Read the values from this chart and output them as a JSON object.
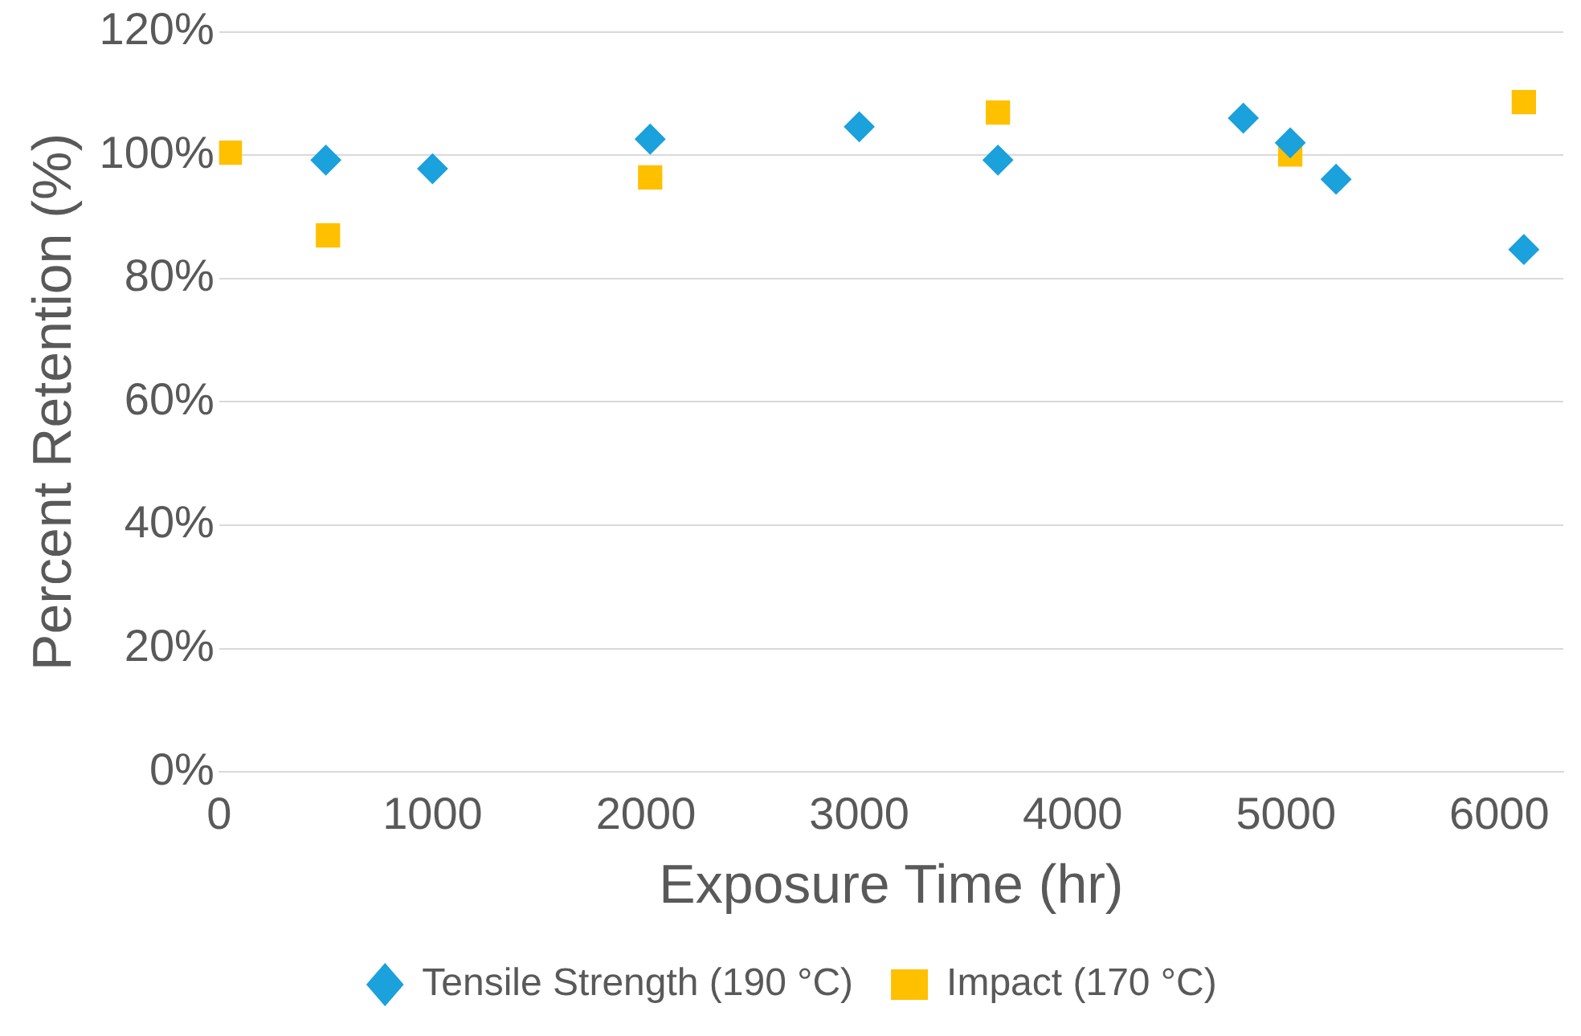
{
  "chart_data": {
    "type": "scatter",
    "xlabel": "Exposure Time (hr)",
    "ylabel": "Percent Retention (%)",
    "xlim": [
      0,
      6300
    ],
    "xticks": [
      0,
      1000,
      2000,
      3000,
      4000,
      5000,
      6000
    ],
    "ylim": [
      0,
      120
    ],
    "yticks": [
      {
        "value": 0,
        "label": "0%"
      },
      {
        "value": 20,
        "label": "20%"
      },
      {
        "value": 40,
        "label": "40%"
      },
      {
        "value": 60,
        "label": "60%"
      },
      {
        "value": 80,
        "label": "80%"
      },
      {
        "value": 100,
        "label": "100%"
      },
      {
        "value": 120,
        "label": "120%"
      }
    ],
    "grid": "y",
    "legend": "bottom",
    "series": [
      {
        "name": "Tensile Strength (190 °C)",
        "color": "#1ba1dc",
        "marker": "diamond",
        "x": [
          500,
          1000,
          2020,
          3000,
          3650,
          4800,
          5020,
          5235,
          6115
        ],
        "values": [
          99.2,
          97.8,
          102.6,
          104.6,
          99.2,
          106,
          102,
          96.1,
          84.7
        ]
      },
      {
        "name": "Impact (170 °C)",
        "color": "#ffc000",
        "marker": "square",
        "x": [
          50,
          510,
          2020,
          3650,
          5020,
          6115
        ],
        "values": [
          100.4,
          87,
          96.4,
          106.9,
          100.1,
          108.6
        ]
      }
    ]
  }
}
